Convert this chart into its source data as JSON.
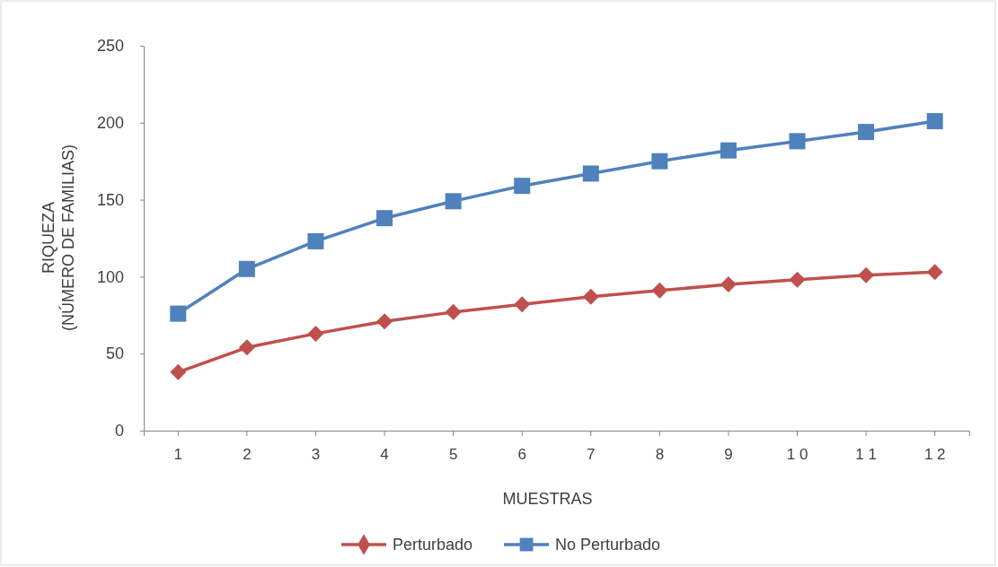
{
  "chart_data": {
    "type": "line",
    "xlabel": "MUESTRAS",
    "ylabel": "RIQUEZA\n(NÚMERO DE FAMILIAS)",
    "categories": [
      "1",
      "2",
      "3",
      "4",
      "5",
      "6",
      "7",
      "8",
      "9",
      "1 0",
      "1 1",
      "1 2"
    ],
    "series": [
      {
        "name": "Perturbado",
        "color": "#c0504d",
        "marker": "diamond",
        "values": [
          38,
          54,
          63,
          71,
          77,
          82,
          87,
          91,
          95,
          98,
          101,
          103
        ]
      },
      {
        "name": "No Perturbado",
        "color": "#4f81bd",
        "marker": "square",
        "values": [
          76,
          105,
          123,
          138,
          149,
          159,
          167,
          175,
          182,
          188,
          194,
          201
        ]
      }
    ],
    "ylim": [
      0,
      250
    ],
    "yticks": [
      0,
      50,
      100,
      150,
      200,
      250
    ],
    "grid": false,
    "legend": "bottom",
    "line_style": "solid"
  }
}
